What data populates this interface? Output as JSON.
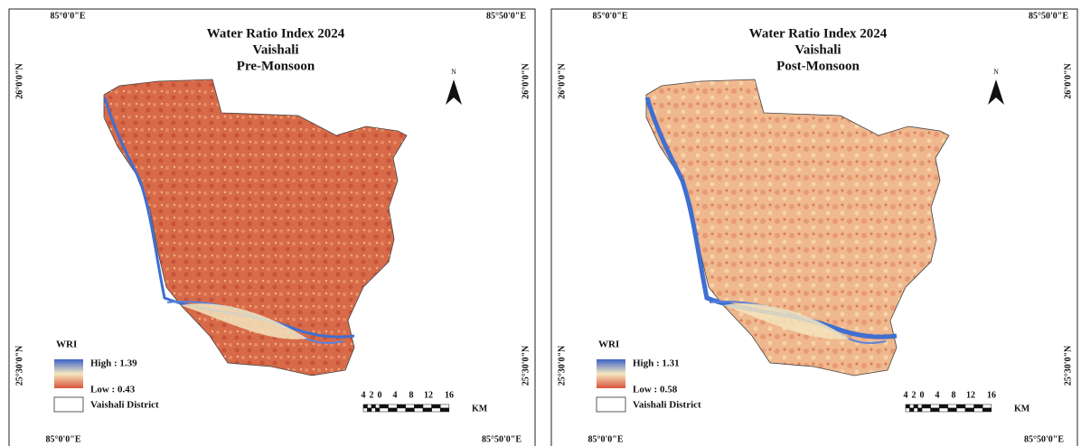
{
  "panels": [
    {
      "title": "Water Ratio Index 2024",
      "district": "Vaishali",
      "season": "Pre-Monsoon",
      "lon_left": "85°0'0\"E",
      "lon_right": "85°50'0\"E",
      "lat_top": "26°0'0\"N",
      "lat_bottom": "25°30'0\"N",
      "north": "N",
      "legend": {
        "title": "WRI",
        "high": "High : 1.39",
        "low": "Low : 0.43",
        "boundary": "Vaishali District"
      },
      "scale": {
        "labels": [
          "4",
          "2",
          "0",
          "4",
          "8",
          "12",
          "16"
        ],
        "unit": "KM"
      }
    },
    {
      "title": "Water Ratio Index 2024",
      "district": "Vaishali",
      "season": "Post-Monsoon",
      "lon_left": "85°0'0\"E",
      "lon_right": "85°50'0\"E",
      "lat_top": "26°0'0\"N",
      "lat_bottom": "25°30'0\"N",
      "north": "N",
      "legend": {
        "title": "WRI",
        "high": "High : 1.31",
        "low": "Low : 0.58",
        "boundary": "Vaishali District"
      },
      "scale": {
        "labels": [
          "4",
          "2",
          "0",
          "4",
          "8",
          "12",
          "16"
        ],
        "unit": "KM"
      }
    }
  ]
}
